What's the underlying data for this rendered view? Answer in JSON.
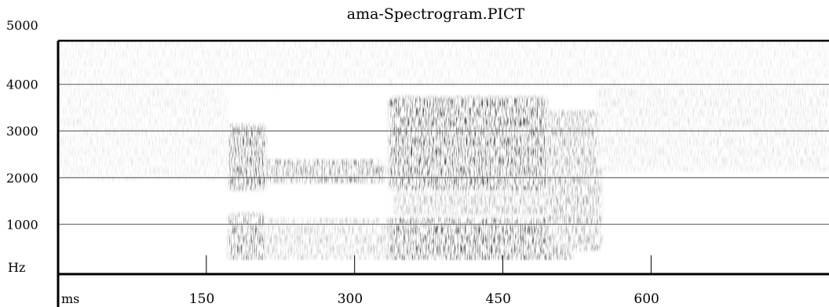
{
  "chart_data": {
    "type": "heatmap",
    "title": "ama-Spectrogram.PICT",
    "y_unit": "Hz",
    "x_unit": "ms",
    "ylim": [
      0,
      5000
    ],
    "xlim": [
      0,
      780
    ],
    "y_ticks": [
      1000,
      2000,
      3000,
      4000,
      5000
    ],
    "x_ticks": [
      150,
      300,
      450,
      600
    ],
    "gridlines_hz": [
      1000,
      2000,
      3000,
      4000
    ],
    "colors": {
      "ink": "#000000",
      "grid": "#7a7a7a",
      "background": "#ffffff"
    },
    "energy_regions": [
      {
        "t0": 172,
        "t1": 210,
        "f0": 1800,
        "f1": 3200,
        "intensity": 0.9
      },
      {
        "t0": 210,
        "t1": 330,
        "f0": 1950,
        "f1": 2450,
        "intensity": 0.75
      },
      {
        "t0": 172,
        "t1": 210,
        "f0": 300,
        "f1": 1300,
        "intensity": 0.75
      },
      {
        "t0": 210,
        "t1": 340,
        "f0": 300,
        "f1": 1200,
        "intensity": 0.3
      },
      {
        "t0": 335,
        "t1": 495,
        "f0": 1800,
        "f1": 3800,
        "intensity": 0.95
      },
      {
        "t0": 335,
        "t1": 520,
        "f0": 300,
        "f1": 1200,
        "intensity": 0.9
      },
      {
        "t0": 340,
        "t1": 500,
        "f0": 1250,
        "f1": 1750,
        "intensity": 0.4
      },
      {
        "t0": 495,
        "t1": 550,
        "f0": 500,
        "f1": 3500,
        "intensity": 0.5
      },
      {
        "t0": 545,
        "t1": 780,
        "f0": 2200,
        "f1": 4400,
        "intensity": 0.15
      },
      {
        "t0": 0,
        "t1": 172,
        "f0": 2000,
        "f1": 5000,
        "intensity": 0.12
      },
      {
        "t0": 0,
        "t1": 780,
        "f0": 4000,
        "f1": 5000,
        "intensity": 0.1
      }
    ]
  }
}
